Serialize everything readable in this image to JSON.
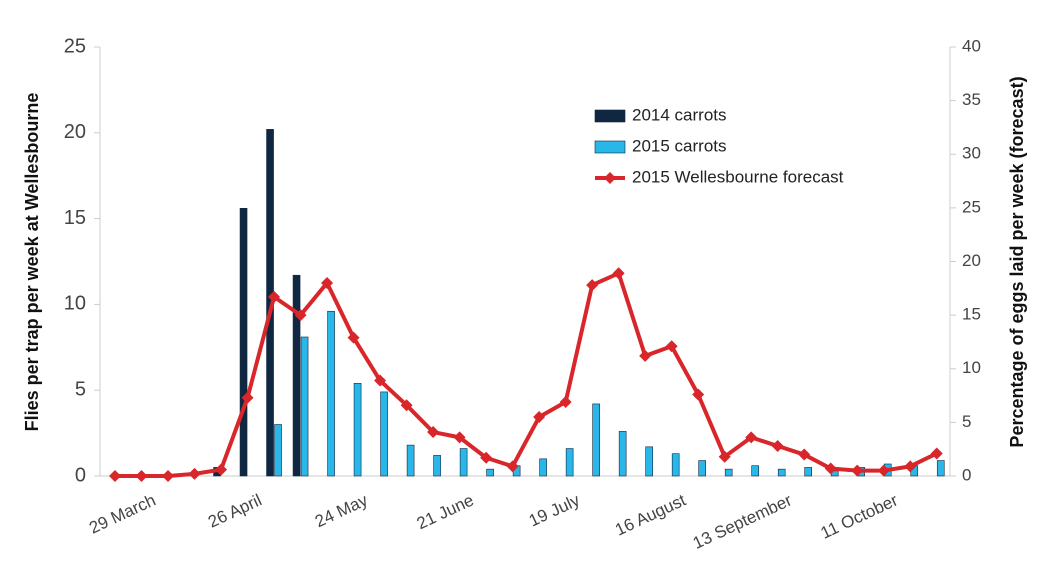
{
  "chart_data": {
    "type": "bar-line",
    "y_label": "Flies per trap per week at Wellesbourne",
    "y2_label": "Percentage of eggs laid per week (forecast)",
    "categories": [
      "29 March",
      null,
      null,
      null,
      "26 April",
      null,
      null,
      null,
      "24 May",
      null,
      null,
      null,
      "21 June",
      null,
      null,
      null,
      "19 July",
      null,
      null,
      null,
      "16 August",
      null,
      null,
      null,
      "13 September",
      null,
      null,
      null,
      "11 October",
      null,
      null,
      null
    ],
    "series": [
      {
        "name": "2014 carrots",
        "type": "bar",
        "color": "#0f2740",
        "values": [
          null,
          null,
          null,
          null,
          0.5,
          15.6,
          20.2,
          11.7,
          null,
          null,
          null,
          null,
          null,
          null,
          null,
          null,
          null,
          null,
          null,
          null,
          null,
          null,
          null,
          null,
          null,
          null,
          null,
          null,
          null,
          null,
          null,
          null
        ]
      },
      {
        "name": "2015 carrots",
        "type": "bar",
        "color": "#29b6e8",
        "values": [
          null,
          null,
          null,
          null,
          null,
          null,
          3.0,
          8.1,
          9.6,
          5.4,
          4.9,
          1.8,
          1.2,
          1.6,
          0.4,
          0.6,
          1.0,
          1.6,
          4.2,
          2.6,
          1.7,
          1.3,
          0.9,
          0.4,
          0.6,
          0.4,
          0.5,
          0.3,
          0.5,
          0.7,
          0.6,
          0.9
        ]
      },
      {
        "name": "2015 Wellesbourne forecast",
        "type": "line",
        "axis": "y2",
        "color": "#d9262b",
        "values": [
          0,
          0,
          0,
          0.2,
          0.6,
          7.3,
          16.7,
          15,
          18,
          12.9,
          8.9,
          6.6,
          4.1,
          3.6,
          1.7,
          0.9,
          5.5,
          6.9,
          17.8,
          18.9,
          11.2,
          12.1,
          7.6,
          1.8,
          3.6,
          2.8,
          2,
          0.7,
          0.5,
          0.5,
          0.9,
          2.1
        ]
      }
    ],
    "ylim": [
      0,
      25
    ],
    "yticks": [
      0,
      5,
      10,
      15,
      20,
      25
    ],
    "y2lim": [
      0,
      40
    ],
    "y2ticks": [
      0,
      5,
      10,
      15,
      20,
      25,
      30,
      35,
      40
    ],
    "grid": false
  }
}
